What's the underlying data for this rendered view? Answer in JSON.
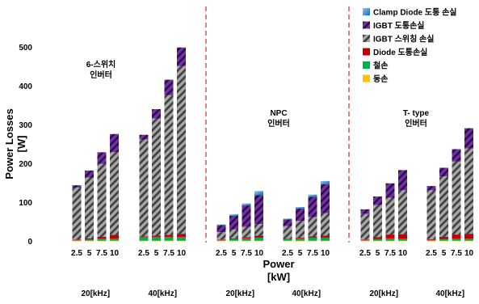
{
  "chart_data": {
    "type": "bar",
    "stacked": true,
    "title": "",
    "xlabel": "Power\n[kW]",
    "ylabel": "Power Losses\n[W]",
    "ylim": [
      0,
      500
    ],
    "yticks": [
      0,
      100,
      200,
      300,
      400,
      500
    ],
    "grid": false,
    "legend_position": "top-right",
    "series": [
      {
        "name": "동손",
        "color": "#ffc000"
      },
      {
        "name": "철손",
        "color": "#00b050"
      },
      {
        "name": "Diode 도통손실",
        "color": "#c00000"
      },
      {
        "name": "IGBT 스위칭 손실",
        "color": "#a6a6a6"
      },
      {
        "name": "IGBT 도통손실",
        "color": "#7030a0"
      },
      {
        "name": "Clamp Diode 도통 손실",
        "color": "#0070c0"
      }
    ],
    "sections": [
      {
        "label": "6-스위치\n인버터",
        "groups": [
          {
            "label": "20[kHz]",
            "bars": [
              {
                "x": "2.5",
                "values": [
                  0.5,
                  2,
                  1,
                  134,
                  6,
                  0
                ]
              },
              {
                "x": "5",
                "values": [
                  0.5,
                  3,
                  3,
                  157,
                  18,
                  0
                ]
              },
              {
                "x": "7.5",
                "values": [
                  0.5,
                  5,
                  5,
                  188,
                  30,
                  0
                ]
              },
              {
                "x": "10",
                "values": [
                  0.5,
                  5,
                  10,
                  213,
                  47,
                  0
                ]
              }
            ]
          },
          {
            "label": "40[kHz]",
            "bars": [
              {
                "x": "2.5",
                "values": [
                  0.5,
                  10,
                  1,
                  250,
                  12,
                  0
                ]
              },
              {
                "x": "5",
                "values": [
                  0.5,
                  10,
                  3,
                  302,
                  24,
                  0
                ]
              },
              {
                "x": "7.5",
                "values": [
                  0.5,
                  10,
                  5,
                  360,
                  40,
                  0
                ]
              },
              {
                "x": "10",
                "values": [
                  0.5,
                  10,
                  8,
                  432,
                  48,
                  0
                ]
              }
            ]
          }
        ]
      },
      {
        "label": "NPC\n인버터",
        "groups": [
          {
            "label": "20[kHz]",
            "bars": [
              {
                "x": "2.5",
                "values": [
                  0.5,
                  2,
                  1,
                  19,
                  18,
                  2
                ]
              },
              {
                "x": "5",
                "values": [
                  0.5,
                  4,
                  2,
                  23,
                  35,
                  4
                ]
              },
              {
                "x": "7.5",
                "values": [
                  0.5,
                  6,
                  3,
                  27,
                  55,
                  5
                ]
              },
              {
                "x": "10",
                "values": [
                  0.5,
                  8,
                  5,
                  30,
                  75,
                  10
                ]
              }
            ]
          },
          {
            "label": "40[kHz]",
            "bars": [
              {
                "x": "2.5",
                "values": [
                  0.5,
                  4,
                  1,
                  33,
                  17,
                  2
                ]
              },
              {
                "x": "5",
                "values": [
                  0.5,
                  6,
                  2,
                  43,
                  32,
                  4
                ]
              },
              {
                "x": "7.5",
                "values": [
                  0.5,
                  8,
                  3,
                  50,
                  52,
                  6
                ]
              },
              {
                "x": "10",
                "values": [
                  0.5,
                  8,
                  5,
                  58,
                  75,
                  8
                ]
              }
            ]
          }
        ]
      },
      {
        "label": "T- type\n인버터",
        "groups": [
          {
            "label": "20[kHz]",
            "bars": [
              {
                "x": "2.5",
                "values": [
                  0.5,
                  2,
                  1,
                  66,
                  12,
                  0
                ]
              },
              {
                "x": "5",
                "values": [
                  0.5,
                  4,
                  5,
                  83,
                  22,
                  0
                ]
              },
              {
                "x": "7.5",
                "values": [
                  0.5,
                  6,
                  10,
                  95,
                  37,
                  0
                ]
              },
              {
                "x": "10",
                "values": [
                  0.5,
                  5,
                  12,
                  113,
                  52,
                  0
                ]
              }
            ]
          },
          {
            "label": "40[kHz]",
            "bars": [
              {
                "x": "2.5",
                "values": [
                  0.5,
                  2,
                  2,
                  126,
                  11,
                  0
                ]
              },
              {
                "x": "5",
                "values": [
                  0.5,
                  4,
                  6,
                  156,
                  22,
                  0
                ]
              },
              {
                "x": "7.5",
                "values": [
                  0.5,
                  5,
                  11,
                  188,
                  32,
                  0
                ]
              },
              {
                "x": "10",
                "values": [
                  0.5,
                  5,
                  13,
                  220,
                  52,
                  0
                ]
              }
            ]
          }
        ]
      }
    ]
  }
}
